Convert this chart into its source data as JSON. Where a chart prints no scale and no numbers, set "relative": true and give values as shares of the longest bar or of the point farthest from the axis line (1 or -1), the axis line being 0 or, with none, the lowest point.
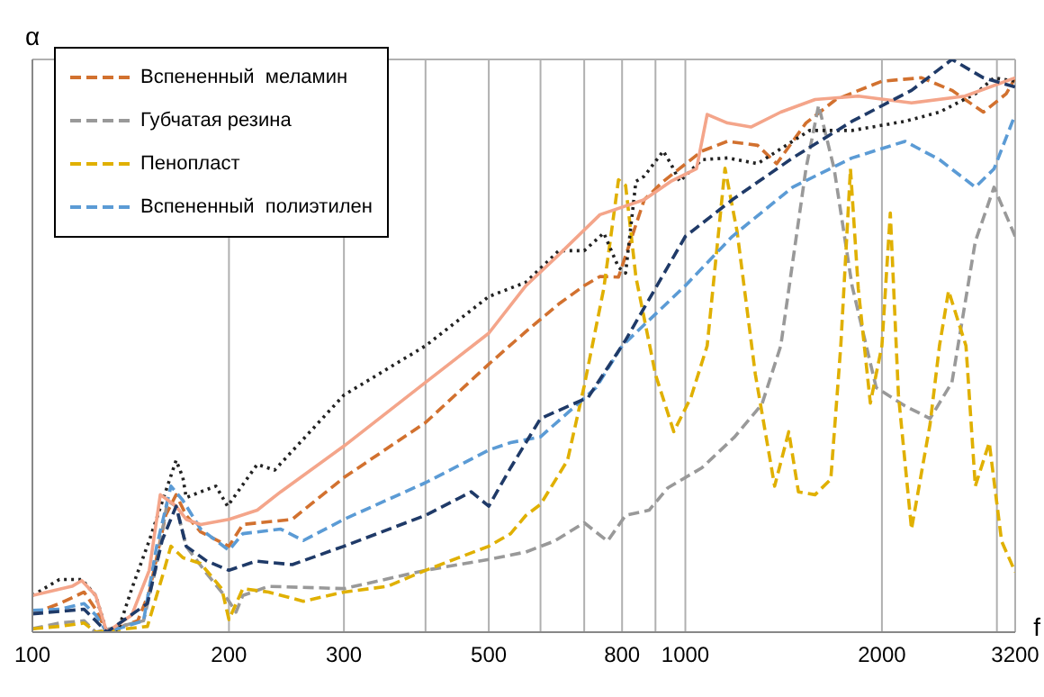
{
  "chart_data": {
    "type": "line",
    "xlabel": "f",
    "ylabel": "α",
    "relative": true,
    "log": "x",
    "grid": true,
    "legend": "top left",
    "marker": "none",
    "xlim": [
      100,
      3200
    ],
    "xticks": [
      100,
      200,
      300,
      {
        "value": 400,
        "label": null
      },
      500,
      {
        "value": 600,
        "label": null
      },
      {
        "value": 700,
        "label": null
      },
      800,
      {
        "value": 900,
        "label": null
      },
      1000,
      2000,
      {
        "value": 3000,
        "label": null
      },
      3200
    ],
    "series": [
      {
        "name": "Вспененный  меламин",
        "color": "#d2712f",
        "line_style": "dashed",
        "x": [
          100,
          110,
          120,
          125,
          130,
          145,
          151,
          160,
          166,
          172,
          181,
          200,
          210,
          250,
          300,
          400,
          500,
          570,
          640,
          700,
          740,
          790,
          865,
          925,
          1060,
          1160,
          1290,
          1380,
          1530,
          1700,
          2000,
          2300,
          2560,
          2860,
          3100,
          3200
        ],
        "values": [
          0.032,
          0.05,
          0.07,
          0.04,
          0,
          0.02,
          0.07,
          0.204,
          0.24,
          0.204,
          0.175,
          0.15,
          0.188,
          0.197,
          0.27,
          0.366,
          0.468,
          0.525,
          0.573,
          0.605,
          0.621,
          0.62,
          0.755,
          0.787,
          0.84,
          0.857,
          0.85,
          0.818,
          0.889,
          0.93,
          0.962,
          0.968,
          0.946,
          0.908,
          0.94,
          0.968
        ]
      },
      {
        "name": "Губчатая резина",
        "color": "#999999",
        "line_style": "dashed",
        "x": [
          100,
          110,
          120,
          125,
          148,
          155,
          161,
          166,
          172,
          185,
          200,
          205,
          210,
          230,
          300,
          400,
          500,
          570,
          630,
          700,
          760,
          810,
          880,
          940,
          1060,
          1190,
          1310,
          1400,
          1530,
          1600,
          1690,
          1800,
          1960,
          2170,
          2370,
          2560,
          2780,
          2970,
          3200
        ],
        "values": [
          0.006,
          0.016,
          0.02,
          0,
          0.02,
          0.118,
          0.229,
          0.22,
          0.15,
          0.102,
          0.054,
          0.035,
          0.064,
          0.08,
          0.076,
          0.108,
          0.127,
          0.14,
          0.159,
          0.191,
          0.159,
          0.204,
          0.213,
          0.252,
          0.287,
          0.341,
          0.398,
          0.5,
          0.809,
          0.92,
          0.809,
          0.605,
          0.427,
          0.395,
          0.373,
          0.436,
          0.682,
          0.777,
          0.691
        ]
      },
      {
        "name": "Пенопласт",
        "color": "#e0b000",
        "line_style": "dashed",
        "x": [
          100,
          110,
          120,
          125,
          150,
          158,
          163,
          170,
          181,
          195,
          200,
          210,
          230,
          260,
          300,
          350,
          400,
          500,
          540,
          570,
          600,
          660,
          700,
          750,
          790,
          810,
          840,
          900,
          960,
          1020,
          1080,
          1150,
          1200,
          1280,
          1370,
          1440,
          1490,
          1580,
          1670,
          1730,
          1790,
          1840,
          1920,
          2000,
          2060,
          2120,
          2220,
          2370,
          2450,
          2530,
          2690,
          2780,
          2920,
          3050,
          3200
        ],
        "values": [
          0.006,
          0.01,
          0.016,
          0,
          0.01,
          0.096,
          0.15,
          0.13,
          0.12,
          0.076,
          0.022,
          0.076,
          0.07,
          0.054,
          0.07,
          0.08,
          0.108,
          0.15,
          0.172,
          0.204,
          0.223,
          0.3,
          0.43,
          0.6,
          0.79,
          0.78,
          0.62,
          0.45,
          0.35,
          0.41,
          0.5,
          0.81,
          0.7,
          0.45,
          0.255,
          0.35,
          0.245,
          0.24,
          0.267,
          0.5,
          0.809,
          0.6,
          0.4,
          0.5,
          0.732,
          0.414,
          0.18,
          0.363,
          0.5,
          0.596,
          0.5,
          0.255,
          0.331,
          0.159,
          0.105
        ]
      },
      {
        "name": "Вспененный  полиэтилен",
        "color": "#5b9bd5",
        "line_style": "dashed",
        "x": [
          100,
          110,
          120,
          125,
          130,
          148,
          155,
          163,
          170,
          181,
          200,
          210,
          240,
          260,
          300,
          400,
          500,
          540,
          600,
          730,
          800,
          1000,
          1180,
          1460,
          1800,
          2170,
          2450,
          2780,
          2970,
          3200
        ],
        "values": [
          0.038,
          0.04,
          0.05,
          0.03,
          0,
          0.02,
          0.15,
          0.255,
          0.23,
          0.18,
          0.143,
          0.172,
          0.18,
          0.16,
          0.197,
          0.261,
          0.318,
          0.331,
          0.341,
          0.427,
          0.5,
          0.605,
          0.691,
          0.777,
          0.828,
          0.857,
          0.825,
          0.777,
          0.809,
          0.904
        ]
      },
      {
        "color": "#222222",
        "line_style": "dotted",
        "x": [
          100,
          110,
          119,
          125,
          130,
          135,
          142,
          151,
          161,
          166,
          170,
          172,
          181,
          191,
          199,
          221,
          235,
          300,
          400,
          500,
          570,
          640,
          700,
          750,
          790,
          810,
          840,
          865,
          925,
          950,
          980,
          1060,
          1160,
          1290,
          1400,
          1550,
          1800,
          2170,
          2450,
          2780,
          2970,
          3200
        ],
        "values": [
          0.064,
          0.092,
          0.092,
          0.064,
          0,
          0,
          0.076,
          0.16,
          0.255,
          0.3,
          0.27,
          0.235,
          0.245,
          0.255,
          0.22,
          0.293,
          0.283,
          0.414,
          0.5,
          0.586,
          0.611,
          0.666,
          0.666,
          0.697,
          0.637,
          0.627,
          0.787,
          0.796,
          0.84,
          0.818,
          0.787,
          0.825,
          0.828,
          0.818,
          0.844,
          0.876,
          0.876,
          0.892,
          0.908,
          0.94,
          0.968,
          0.962
        ]
      },
      {
        "color": "#f4a58a",
        "line_style": "solid",
        "x": [
          100,
          115,
          119,
          125,
          130,
          142,
          151,
          157,
          166,
          172,
          181,
          200,
          221,
          240,
          300,
          400,
          500,
          570,
          640,
          740,
          865,
          950,
          1040,
          1080,
          1160,
          1260,
          1400,
          1580,
          1840,
          2220,
          2680,
          3200
        ],
        "values": [
          0.064,
          0.08,
          0.09,
          0.064,
          0,
          0.03,
          0.108,
          0.24,
          0.22,
          0.197,
          0.188,
          0.197,
          0.213,
          0.245,
          0.325,
          0.436,
          0.522,
          0.605,
          0.659,
          0.729,
          0.755,
          0.787,
          0.809,
          0.904,
          0.889,
          0.882,
          0.908,
          0.93,
          0.936,
          0.924,
          0.936,
          0.968
        ]
      },
      {
        "color": "#1f3a68",
        "line_style": "dashed",
        "x": [
          100,
          120,
          125,
          130,
          150,
          158,
          166,
          172,
          185,
          200,
          220,
          250,
          300,
          400,
          470,
          500,
          540,
          600,
          710,
          810,
          1000,
          1180,
          1460,
          1800,
          2220,
          2560,
          2860,
          3200
        ],
        "values": [
          0.032,
          0.04,
          0.02,
          0,
          0.05,
          0.16,
          0.22,
          0.15,
          0.124,
          0.108,
          0.124,
          0.118,
          0.15,
          0.204,
          0.245,
          0.22,
          0.287,
          0.373,
          0.41,
          0.51,
          0.691,
          0.755,
          0.828,
          0.892,
          0.946,
          1,
          0.968,
          0.952
        ]
      }
    ]
  }
}
